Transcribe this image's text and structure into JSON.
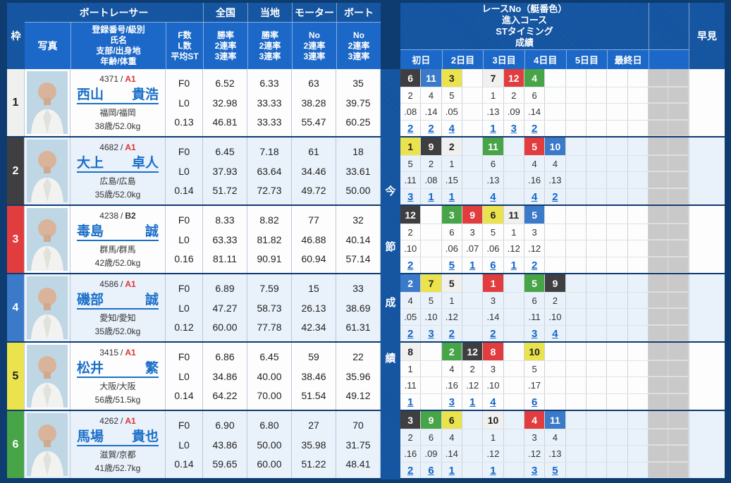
{
  "labels": {
    "frame": "枠",
    "photo": "写真",
    "racer_group": "ボートレーサー",
    "info_lines": [
      "登録番号/級別",
      "氏名",
      "支部/出身地",
      "年齢/体重"
    ],
    "fl_lines": [
      "F数",
      "L数",
      "平均ST"
    ],
    "national": "全国",
    "local": "当地",
    "motor": "モーター",
    "boat": "ボート",
    "rate_sub": [
      "勝率",
      "2連率",
      "3連率"
    ],
    "no_sub": [
      "No",
      "2連率",
      "3連率"
    ],
    "series_vertical": "今節成績",
    "results_header_lines": [
      "レースNo（艇番色）",
      "進入コース",
      "STタイミング",
      "成績"
    ],
    "day_labels": [
      "初日",
      "2日目",
      "3日目",
      "4日目",
      "5日目",
      "最終日"
    ],
    "hayami": "早見",
    "separator": "/"
  },
  "colors": {
    "navy_border": "#0e3b70",
    "header_dark": "#11529f",
    "header_bright": "#1c68c8",
    "link_blue": "#1467c8",
    "row_odd": "#fdfdfd",
    "row_even": "#e9f1fa",
    "unused_gray": "#c9c9c9",
    "class": {
      "A1": "#e0312f",
      "B2": "#333333"
    },
    "boat": {
      "1": {
        "bg": "#f0f0ee",
        "fg": "#222222"
      },
      "2": {
        "bg": "#3f3f41",
        "fg": "#ffffff"
      },
      "3": {
        "bg": "#e23d3e",
        "fg": "#ffffff"
      },
      "4": {
        "bg": "#3b7ac9",
        "fg": "#ffffff"
      },
      "5": {
        "bg": "#ebe34d",
        "fg": "#222222"
      },
      "6": {
        "bg": "#47a447",
        "fg": "#ffffff"
      }
    }
  },
  "racers": [
    {
      "frame": "1",
      "reg_no": "4371",
      "class": "A1",
      "name_last": "西山",
      "name_first": "貴浩",
      "branch_origin": "福岡/福岡",
      "age_weight": "38歳/52.0kg",
      "f_count": "F0",
      "l_count": "L0",
      "avg_st": "0.13",
      "national": [
        "6.52",
        "32.98",
        "46.81"
      ],
      "local": [
        "6.33",
        "33.33",
        "33.33"
      ],
      "motor": [
        "63",
        "38.28",
        "55.47"
      ],
      "boat": [
        "35",
        "39.75",
        "60.25"
      ],
      "results": [
        {
          "race": "6",
          "boat": "2",
          "course": "2",
          "st": ".08",
          "result": "2"
        },
        {
          "race": "11",
          "boat": "4",
          "course": "4",
          "st": ".14",
          "result": "2"
        },
        {
          "race": "3",
          "boat": "5",
          "course": "5",
          "st": ".05",
          "result": "4"
        },
        null,
        {
          "race": "7",
          "boat": "1",
          "course": "1",
          "st": ".13",
          "result": "1"
        },
        {
          "race": "12",
          "boat": "3",
          "course": "2",
          "st": ".09",
          "result": "3"
        },
        {
          "race": "4",
          "boat": "6",
          "course": "6",
          "st": ".14",
          "result": "2"
        },
        null,
        null,
        null,
        null,
        null
      ]
    },
    {
      "frame": "2",
      "reg_no": "4682",
      "class": "A1",
      "name_last": "大上",
      "name_first": "卓人",
      "branch_origin": "広島/広島",
      "age_weight": "35歳/52.0kg",
      "f_count": "F0",
      "l_count": "L0",
      "avg_st": "0.14",
      "national": [
        "6.45",
        "37.93",
        "51.72"
      ],
      "local": [
        "7.18",
        "63.64",
        "72.73"
      ],
      "motor": [
        "61",
        "34.46",
        "49.72"
      ],
      "boat": [
        "18",
        "33.61",
        "50.00"
      ],
      "results": [
        {
          "race": "1",
          "boat": "5",
          "course": "5",
          "st": ".11",
          "result": "3"
        },
        {
          "race": "9",
          "boat": "2",
          "course": "2",
          "st": ".08",
          "result": "1"
        },
        {
          "race": "2",
          "boat": "1",
          "course": "1",
          "st": ".15",
          "result": "1"
        },
        null,
        {
          "race": "11",
          "boat": "6",
          "course": "6",
          "st": ".13",
          "result": "4"
        },
        null,
        {
          "race": "5",
          "boat": "3",
          "course": "4",
          "st": ".16",
          "result": "4"
        },
        {
          "race": "10",
          "boat": "4",
          "course": "4",
          "st": ".13",
          "result": "2"
        },
        null,
        null,
        null,
        null
      ]
    },
    {
      "frame": "3",
      "reg_no": "4238",
      "class": "B2",
      "name_last": "毒島",
      "name_first": "誠",
      "branch_origin": "群馬/群馬",
      "age_weight": "42歳/52.0kg",
      "f_count": "F0",
      "l_count": "L0",
      "avg_st": "0.16",
      "national": [
        "8.33",
        "63.33",
        "81.11"
      ],
      "local": [
        "8.82",
        "81.82",
        "90.91"
      ],
      "motor": [
        "77",
        "46.88",
        "60.94"
      ],
      "boat": [
        "32",
        "40.14",
        "57.14"
      ],
      "results": [
        {
          "race": "12",
          "boat": "2",
          "course": "2",
          "st": ".10",
          "result": "2"
        },
        null,
        {
          "race": "3",
          "boat": "6",
          "course": "6",
          "st": ".06",
          "result": "5"
        },
        {
          "race": "9",
          "boat": "3",
          "course": "3",
          "st": ".07",
          "result": "1"
        },
        {
          "race": "6",
          "boat": "5",
          "course": "5",
          "st": ".06",
          "result": "6"
        },
        {
          "race": "11",
          "boat": "1",
          "course": "1",
          "st": ".12",
          "result": "1"
        },
        {
          "race": "5",
          "boat": "4",
          "course": "3",
          "st": ".12",
          "result": "2"
        },
        null,
        null,
        null,
        null,
        null
      ]
    },
    {
      "frame": "4",
      "reg_no": "4586",
      "class": "A1",
      "name_last": "磯部",
      "name_first": "誠",
      "branch_origin": "愛知/愛知",
      "age_weight": "35歳/52.0kg",
      "f_count": "F0",
      "l_count": "L0",
      "avg_st": "0.12",
      "national": [
        "6.89",
        "47.27",
        "60.00"
      ],
      "local": [
        "7.59",
        "58.73",
        "77.78"
      ],
      "motor": [
        "15",
        "26.13",
        "42.34"
      ],
      "boat": [
        "33",
        "38.69",
        "61.31"
      ],
      "results": [
        {
          "race": "2",
          "boat": "4",
          "course": "4",
          "st": ".05",
          "result": "2"
        },
        {
          "race": "7",
          "boat": "5",
          "course": "5",
          "st": ".10",
          "result": "3"
        },
        {
          "race": "5",
          "boat": "1",
          "course": "1",
          "st": ".12",
          "result": "2"
        },
        null,
        {
          "race": "1",
          "boat": "3",
          "course": "3",
          "st": ".14",
          "result": "2"
        },
        null,
        {
          "race": "5",
          "boat": "6",
          "course": "6",
          "st": ".11",
          "result": "3"
        },
        {
          "race": "9",
          "boat": "2",
          "course": "2",
          "st": ".10",
          "result": "4"
        },
        null,
        null,
        null,
        null
      ]
    },
    {
      "frame": "5",
      "reg_no": "3415",
      "class": "A1",
      "name_last": "松井",
      "name_first": "繁",
      "branch_origin": "大阪/大阪",
      "age_weight": "56歳/51.5kg",
      "f_count": "F0",
      "l_count": "L0",
      "avg_st": "0.14",
      "national": [
        "6.86",
        "34.86",
        "64.22"
      ],
      "local": [
        "6.45",
        "40.00",
        "70.00"
      ],
      "motor": [
        "59",
        "38.46",
        "51.54"
      ],
      "boat": [
        "22",
        "35.96",
        "49.12"
      ],
      "results": [
        {
          "race": "8",
          "boat": "1",
          "course": "1",
          "st": ".11",
          "result": "1"
        },
        null,
        {
          "race": "2",
          "boat": "6",
          "course": "4",
          "st": ".16",
          "result": "3"
        },
        {
          "race": "12",
          "boat": "2",
          "course": "2",
          "st": ".12",
          "result": "1"
        },
        {
          "race": "8",
          "boat": "3",
          "course": "3",
          "st": ".10",
          "result": "4"
        },
        null,
        {
          "race": "10",
          "boat": "5",
          "course": "5",
          "st": ".17",
          "result": "6"
        },
        null,
        null,
        null,
        null,
        null
      ]
    },
    {
      "frame": "6",
      "reg_no": "4262",
      "class": "A1",
      "name_last": "馬場",
      "name_first": "貴也",
      "branch_origin": "滋賀/京都",
      "age_weight": "41歳/52.7kg",
      "f_count": "F0",
      "l_count": "L0",
      "avg_st": "0.14",
      "national": [
        "6.90",
        "43.86",
        "59.65"
      ],
      "local": [
        "6.80",
        "50.00",
        "60.00"
      ],
      "motor": [
        "27",
        "35.98",
        "51.22"
      ],
      "boat": [
        "70",
        "31.75",
        "48.41"
      ],
      "results": [
        {
          "race": "3",
          "boat": "2",
          "course": "2",
          "st": ".16",
          "result": "2"
        },
        {
          "race": "9",
          "boat": "6",
          "course": "6",
          "st": ".09",
          "result": "6"
        },
        {
          "race": "6",
          "boat": "5",
          "course": "4",
          "st": ".14",
          "result": "1"
        },
        null,
        {
          "race": "10",
          "boat": "1",
          "course": "1",
          "st": ".12",
          "result": "1"
        },
        null,
        {
          "race": "4",
          "boat": "3",
          "course": "3",
          "st": ".12",
          "result": "3"
        },
        {
          "race": "11",
          "boat": "4",
          "course": "4",
          "st": ".13",
          "result": "5"
        },
        null,
        null,
        null,
        null
      ]
    }
  ]
}
